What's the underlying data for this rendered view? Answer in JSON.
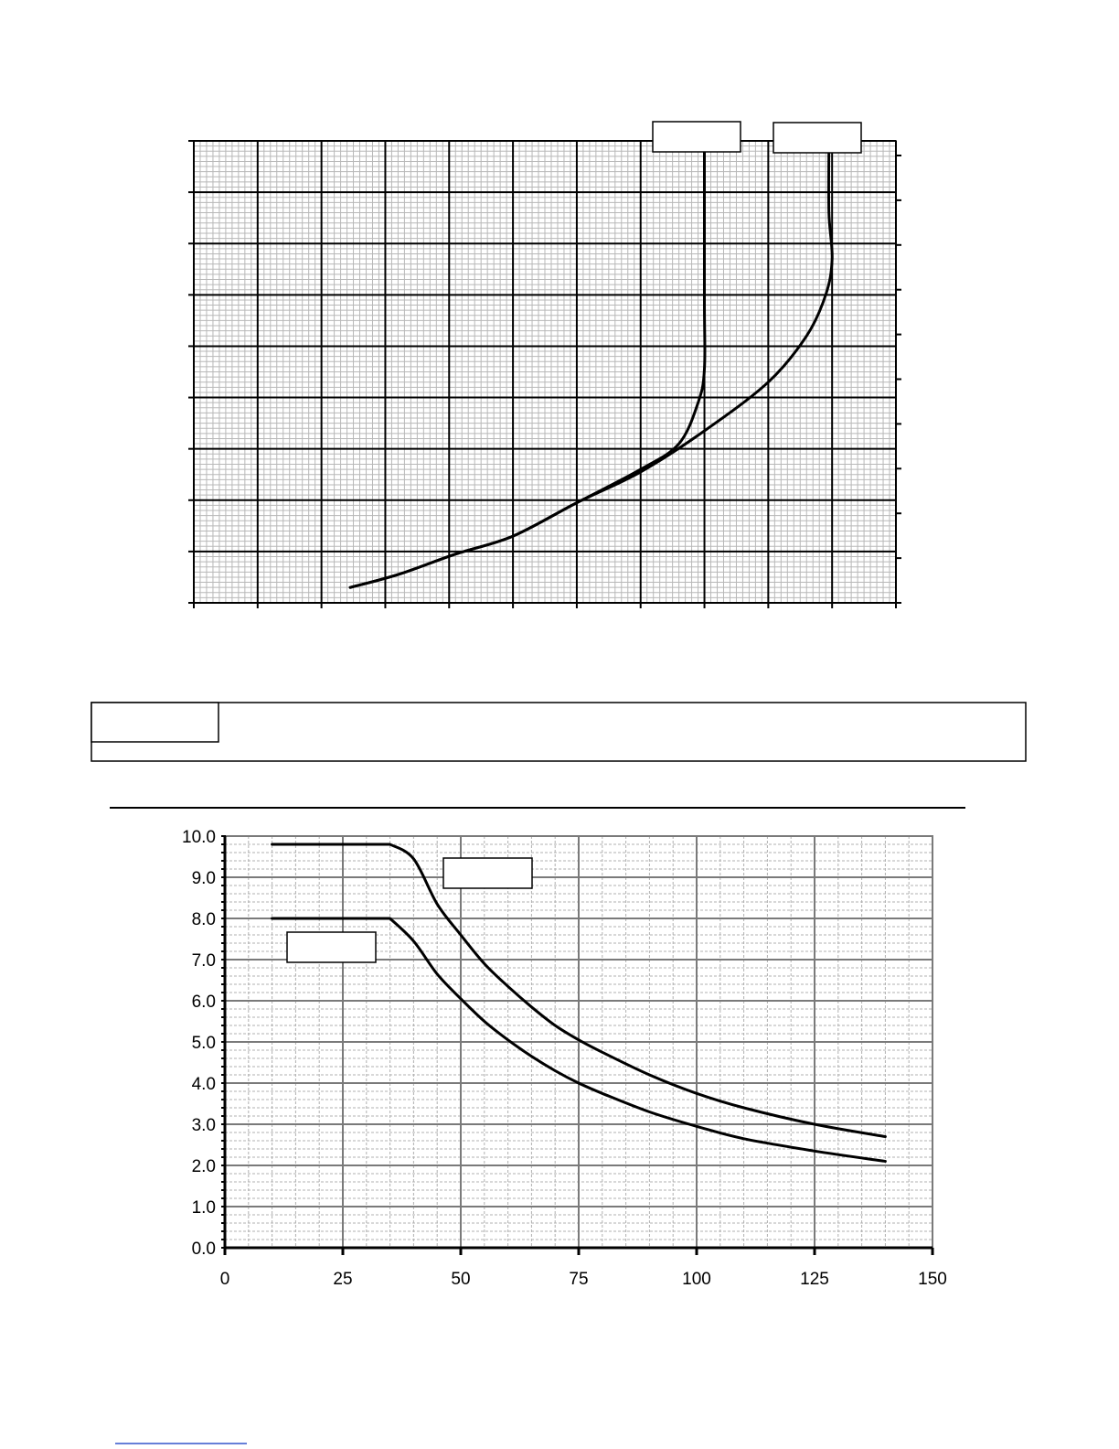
{
  "chart_data": [
    {
      "type": "line",
      "title": "",
      "xlabel": "",
      "ylabel": "",
      "xlim": [
        0,
        11
      ],
      "ylim": [
        0,
        9
      ],
      "grid": true,
      "x_tick_labels": [],
      "y_tick_labels": [],
      "series": [
        {
          "x": [
            2.45,
            3.2,
            4.1,
            5.0,
            6.0,
            7.0,
            7.6,
            7.9,
            8.0,
            8.0,
            8.0
          ],
          "y": [
            0.3,
            0.55,
            0.95,
            1.3,
            1.95,
            2.6,
            3.1,
            3.9,
            4.55,
            5.9,
            8.9
          ]
        },
        {
          "x": [
            2.45,
            3.2,
            4.1,
            5.0,
            6.0,
            7.0,
            8.0,
            9.0,
            9.6,
            9.9,
            10.0,
            9.95,
            9.95
          ],
          "y": [
            0.3,
            0.55,
            0.95,
            1.3,
            1.95,
            2.55,
            3.35,
            4.3,
            5.2,
            6.0,
            6.7,
            7.6,
            8.9
          ]
        }
      ]
    },
    {
      "type": "line",
      "title": "",
      "xlabel": "",
      "ylabel": "",
      "xlim": [
        0,
        150
      ],
      "ylim": [
        0,
        10
      ],
      "grid": true,
      "x_ticks": [
        "0",
        "25",
        "50",
        "75",
        "100",
        "125",
        "150"
      ],
      "y_ticks": [
        "0.0",
        "1.0",
        "2.0",
        "3.0",
        "4.0",
        "5.0",
        "6.0",
        "7.0",
        "8.0",
        "9.0",
        "10.0"
      ],
      "series": [
        {
          "x": [
            10,
            35,
            40,
            45,
            50,
            55,
            60,
            65,
            70,
            75,
            80,
            90,
            100,
            110,
            125,
            140
          ],
          "y": [
            9.8,
            9.8,
            9.45,
            8.35,
            7.6,
            6.9,
            6.35,
            5.85,
            5.4,
            5.05,
            4.75,
            4.2,
            3.75,
            3.4,
            3.0,
            2.7
          ]
        },
        {
          "x": [
            10,
            35,
            40,
            45,
            50,
            55,
            60,
            65,
            70,
            75,
            80,
            90,
            100,
            110,
            125,
            140
          ],
          "y": [
            8.0,
            8.0,
            7.45,
            6.65,
            6.05,
            5.5,
            5.05,
            4.65,
            4.3,
            4.0,
            3.75,
            3.3,
            2.95,
            2.65,
            2.35,
            2.1
          ]
        }
      ]
    }
  ],
  "upper_chart_label_boxes": [
    "",
    ""
  ],
  "lower_chart_label_boxes": [
    "",
    ""
  ],
  "note_box": {
    "label": "",
    "text": ""
  }
}
